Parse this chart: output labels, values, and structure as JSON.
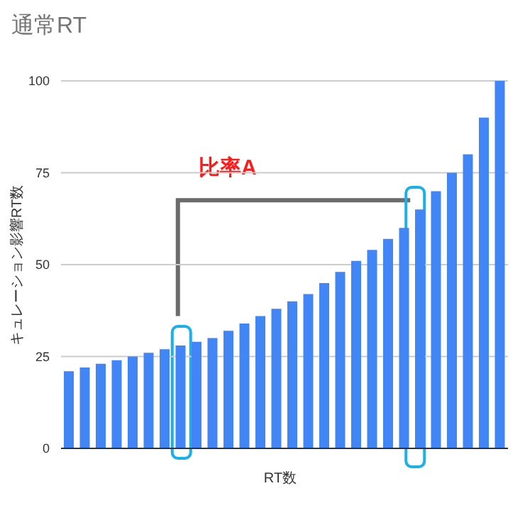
{
  "chart_data": {
    "type": "bar",
    "title": "通常RT",
    "xlabel": "RT数",
    "ylabel": "キュレーション影響RT数",
    "categories": [
      null,
      null,
      null,
      null,
      null,
      null,
      null,
      null,
      null,
      null,
      null,
      null,
      null,
      null,
      null,
      null,
      null,
      null,
      null,
      null,
      null,
      null,
      null,
      null,
      null,
      null,
      null,
      null
    ],
    "values": [
      21,
      22,
      23,
      24,
      25,
      26,
      27,
      28,
      29,
      30,
      32,
      34,
      36,
      38,
      40,
      42,
      45,
      48,
      51,
      54,
      57,
      60,
      65,
      70,
      75,
      80,
      90,
      100
    ],
    "color": "#4285f4",
    "ylim": [
      0,
      100
    ],
    "yticks": [
      0,
      25,
      50,
      75,
      100
    ],
    "grid": "y",
    "annotations": [
      "比率A"
    ]
  }
}
